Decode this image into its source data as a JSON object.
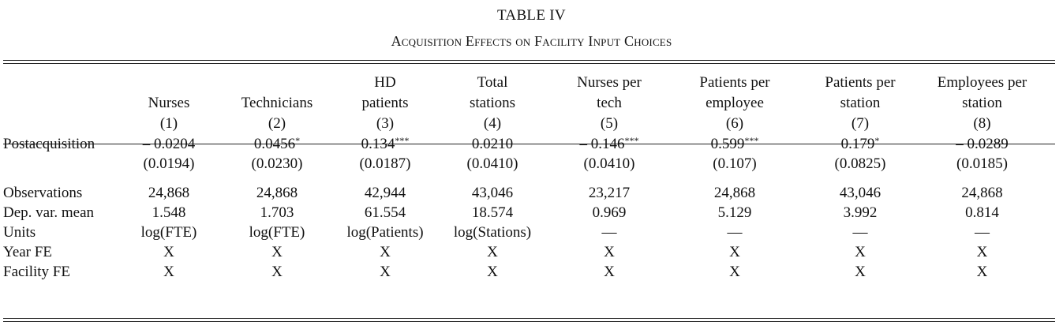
{
  "caption": {
    "label": "TABLE IV",
    "title": "Acquisition Effects on Facility Input Choices"
  },
  "columns": [
    {
      "lines": [
        "",
        "Nurses",
        "(1)"
      ]
    },
    {
      "lines": [
        "",
        "Technicians",
        "(2)"
      ]
    },
    {
      "lines": [
        "HD",
        "patients",
        "(3)"
      ]
    },
    {
      "lines": [
        "Total",
        "stations",
        "(4)"
      ]
    },
    {
      "lines": [
        "Nurses per",
        "tech",
        "(5)"
      ]
    },
    {
      "lines": [
        "Patients per",
        "employee",
        "(6)"
      ]
    },
    {
      "lines": [
        "Patients per",
        "station",
        "(7)"
      ]
    },
    {
      "lines": [
        "Employees per",
        "station",
        "(8)"
      ]
    }
  ],
  "rows": {
    "postacquisition": {
      "label": "Postacquisition",
      "coef": [
        "– 0.0204",
        "0.0456",
        "0.134",
        "0.0210",
        "– 0.146",
        "0.599",
        "0.179",
        "– 0.0289"
      ],
      "stars": [
        "",
        "*",
        "***",
        "",
        "***",
        "***",
        "*",
        ""
      ],
      "se": [
        "(0.0194)",
        "(0.0230)",
        "(0.0187)",
        "(0.0410)",
        "(0.0410)",
        "(0.107)",
        "(0.0825)",
        "(0.0185)"
      ]
    },
    "observations": {
      "label": "Observations",
      "values": [
        "24,868",
        "24,868",
        "42,944",
        "43,046",
        "23,217",
        "24,868",
        "43,046",
        "24,868"
      ]
    },
    "dep_var_mean": {
      "label": "Dep. var. mean",
      "values": [
        "1.548",
        "1.703",
        "61.554",
        "18.574",
        "0.969",
        "5.129",
        "3.992",
        "0.814"
      ]
    },
    "units": {
      "label": "Units",
      "values": [
        "log(FTE)",
        "log(FTE)",
        "log(Patients)",
        "log(Stations)",
        "—",
        "—",
        "—",
        "—"
      ]
    },
    "year_fe": {
      "label": "Year FE",
      "values": [
        "X",
        "X",
        "X",
        "X",
        "X",
        "X",
        "X",
        "X"
      ]
    },
    "facility_fe": {
      "label": "Facility FE",
      "values": [
        "X",
        "X",
        "X",
        "X",
        "X",
        "X",
        "X",
        "X"
      ]
    }
  }
}
